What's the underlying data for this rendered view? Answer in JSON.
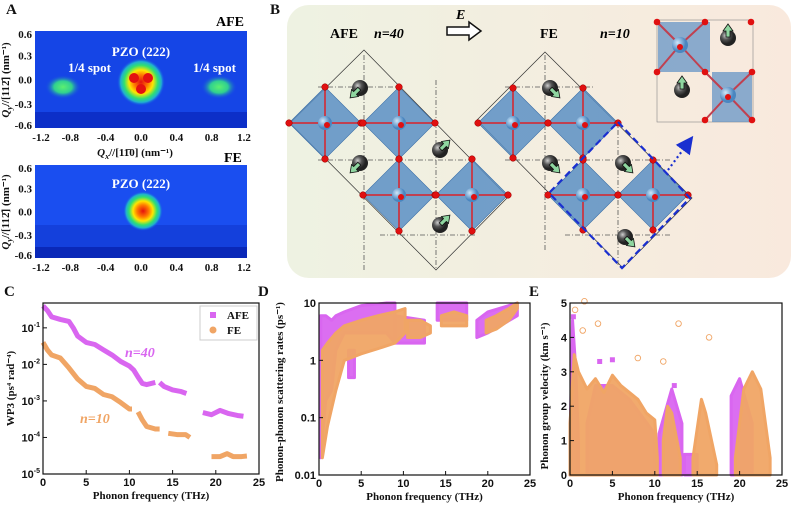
{
  "panel_labels": {
    "a": "A",
    "b": "B",
    "c": "C",
    "d": "D",
    "e": "E"
  },
  "colors": {
    "afe": "#d966f0",
    "fe": "#f0a565",
    "heat_bg": "#1545e6",
    "cell_bg_left": "#eef2e2",
    "cell_bg_right": "#f9e9dd",
    "octa": "#5b8fc4",
    "oxygen": "#e01010",
    "a_site": "#444444",
    "arrow": "#8fd6a0",
    "dash_box": "#1a2fd0"
  },
  "panel_a": {
    "top_state": "AFE",
    "bottom_state": "FE",
    "peak_label": "PZO (222)",
    "spot_label": "1/4 spot",
    "x_ticks": [
      "-1.2",
      "-0.8",
      "-0.4",
      "0.0",
      "0.4",
      "0.8",
      "1.2"
    ],
    "y_ticks": [
      "0.6",
      "0.3",
      "0.0",
      "-0.3",
      "-0.6"
    ],
    "xlabel": {
      "var": "Q",
      "sub": "x",
      "rest": "//[11̄0] (nm⁻¹)"
    },
    "ylabel": {
      "var": "Q",
      "sub": "y",
      "rest": "//[112̄] (nm⁻¹)"
    }
  },
  "panel_b": {
    "afe_label": "AFE",
    "afe_n": "n=40",
    "field_label": "E",
    "fe_label": "FE",
    "fe_n": "n=10"
  },
  "chart_data": [
    {
      "id": "C",
      "type": "line",
      "xlabel": "Phonon frequency (THz)",
      "ylabel": "WP3 (ps⁴ rad⁻⁴)",
      "xlim": [
        0,
        25
      ],
      "ylim_log10": [
        -5,
        -0.32
      ],
      "yscale": "log",
      "x_ticks": [
        "0",
        "5",
        "10",
        "15",
        "20",
        "25"
      ],
      "y_tick_exponents": [
        "-5",
        "-4",
        "-3",
        "-2",
        "-1"
      ],
      "legend": {
        "position": "top-right",
        "entries": [
          "AFE",
          "FE"
        ]
      },
      "annotations": [
        "n=40",
        "n=10"
      ],
      "series": [
        {
          "name": "AFE",
          "segments": [
            [
              [
                0,
                0.4
              ],
              [
                0.5,
                0.3
              ],
              [
                1,
                0.2
              ],
              [
                2,
                0.17
              ],
              [
                3,
                0.15
              ],
              [
                3.5,
                0.1
              ],
              [
                4,
                0.06
              ],
              [
                5,
                0.04
              ],
              [
                6,
                0.035
              ],
              [
                7,
                0.025
              ],
              [
                8,
                0.018
              ],
              [
                9,
                0.012
              ],
              [
                10,
                0.009
              ],
              [
                10.5,
                0.007
              ],
              [
                11,
                0.0045
              ],
              [
                11.5,
                0.003
              ],
              [
                12,
                0.0028
              ],
              [
                13,
                0.0032
              ]
            ],
            [
              [
                13.5,
                0.0032
              ],
              [
                14,
                0.0025
              ],
              [
                15,
                0.002
              ],
              [
                16,
                0.0018
              ],
              [
                16.6,
                0.0016
              ]
            ],
            [
              [
                18.5,
                0.00048
              ],
              [
                19.5,
                0.00042
              ],
              [
                20.5,
                0.00055
              ],
              [
                21.5,
                0.00045
              ],
              [
                22.5,
                0.0004
              ],
              [
                23.2,
                0.00038
              ]
            ]
          ]
        },
        {
          "name": "FE",
          "segments": [
            [
              [
                0,
                0.04
              ],
              [
                0.5,
                0.025
              ],
              [
                1,
                0.018
              ],
              [
                2,
                0.015
              ],
              [
                3,
                0.008
              ],
              [
                4,
                0.004
              ],
              [
                5,
                0.0025
              ],
              [
                6,
                0.0022
              ],
              [
                7,
                0.0015
              ],
              [
                8,
                0.0013
              ],
              [
                9,
                0.0009
              ],
              [
                10,
                0.0006
              ],
              [
                10.3,
                0.0006
              ]
            ],
            [
              [
                11,
                0.0005
              ],
              [
                11.5,
                0.0003
              ],
              [
                12,
                0.0002
              ],
              [
                13,
                0.00017
              ],
              [
                13.5,
                0.00017
              ]
            ],
            [
              [
                14.5,
                0.00013
              ],
              [
                15.5,
                0.00012
              ],
              [
                16.5,
                0.00012
              ],
              [
                17,
                0.0001
              ]
            ],
            [
              [
                19.5,
                3e-05
              ],
              [
                20.5,
                3e-05
              ],
              [
                21.3,
                3.6e-05
              ],
              [
                22,
                3e-05
              ],
              [
                23,
                3e-05
              ],
              [
                23.6,
                3.1e-05
              ]
            ]
          ]
        }
      ]
    },
    {
      "id": "D",
      "type": "scatter",
      "xlabel": "Phonon frequency (THz)",
      "ylabel": "Phonon-phonon scattering rates (ps⁻¹)",
      "xlim": [
        0,
        25
      ],
      "ylim": [
        0.01,
        10
      ],
      "yscale": "log",
      "x_ticks": [
        "0",
        "5",
        "10",
        "15",
        "20",
        "25"
      ],
      "y_ticks": [
        "0.01",
        "0.1",
        "1",
        "10"
      ],
      "series": [
        {
          "name": "AFE",
          "bands": [
            {
              "x": [
                0.2,
                0.8,
                1.5,
                2,
                3,
                5,
                8,
                9
              ],
              "lo": [
                0.02,
                0.2,
                0.3,
                1.5,
                3,
                3,
                3,
                2
              ],
              "hi": [
                6,
                6,
                5,
                6,
                7,
                9,
                10,
                10
              ]
            },
            {
              "x": [
                3.5,
                4.2
              ],
              "lo": [
                0.5,
                0.5
              ],
              "hi": [
                1.5,
                1.5
              ]
            },
            {
              "x": [
                9,
                12.5
              ],
              "lo": [
                2,
                2
              ],
              "hi": [
                6,
                5
              ]
            },
            {
              "x": [
                14,
                17.5
              ],
              "lo": [
                5,
                5
              ],
              "hi": [
                10,
                10
              ]
            },
            {
              "x": [
                18.7,
                20,
                23.5
              ],
              "lo": [
                2.5,
                3,
                6
              ],
              "hi": [
                5,
                7,
                10
              ]
            }
          ]
        },
        {
          "name": "FE",
          "bands": [
            {
              "x": [
                0.4,
                1,
                2,
                3,
                5,
                7,
                9,
                10.2
              ],
              "lo": [
                0.02,
                0.07,
                0.3,
                1,
                1.3,
                1.6,
                2,
                3
              ],
              "hi": [
                1.5,
                2,
                3,
                4,
                5,
                6,
                7,
                8
              ]
            },
            {
              "x": [
                10.5,
                12,
                13.2
              ],
              "lo": [
                2.5,
                2.5,
                3
              ],
              "hi": [
                5,
                5,
                4
              ]
            },
            {
              "x": [
                14.5,
                16,
                17.5
              ],
              "lo": [
                4,
                4,
                4
              ],
              "hi": [
                6,
                7,
                6
              ]
            },
            {
              "x": [
                19.8,
                21,
                22.5,
                23.5
              ],
              "lo": [
                3,
                3.5,
                5,
                8
              ],
              "hi": [
                5,
                6,
                8,
                10
              ]
            }
          ]
        }
      ]
    },
    {
      "id": "E",
      "type": "scatter",
      "xlabel": "Phonon frequency (THz)",
      "ylabel": "Phonon group velocity (km s⁻¹)",
      "xlim": [
        0,
        25
      ],
      "ylim": [
        0,
        5
      ],
      "x_ticks": [
        "0",
        "5",
        "10",
        "15",
        "20",
        "25"
      ],
      "y_ticks": [
        "0",
        "1",
        "2",
        "3",
        "4",
        "5"
      ],
      "series": [
        {
          "name": "AFE",
          "bands": [
            {
              "x": [
                0,
                0.3,
                0.7,
                1
              ],
              "lo": [
                0,
                0,
                0,
                0
              ],
              "hi": [
                1,
                4.5,
                3,
                1
              ]
            },
            {
              "x": [
                2,
                3,
                5,
                7,
                10
              ],
              "lo": [
                0,
                0,
                0,
                0,
                0
              ],
              "hi": [
                1.5,
                2.6,
                2.6,
                2.2,
                1.2
              ]
            },
            {
              "x": [
                10.5,
                12,
                13.2
              ],
              "lo": [
                0,
                0,
                0
              ],
              "hi": [
                1.2,
                2.5,
                1.5
              ]
            },
            {
              "x": [
                13.5,
                15
              ],
              "lo": [
                0,
                0
              ],
              "hi": [
                0.6,
                0.6
              ]
            },
            {
              "x": [
                19,
                20,
                21.5
              ],
              "lo": [
                0,
                0,
                0
              ],
              "hi": [
                2.3,
                2.8,
                1.5
              ]
            }
          ],
          "outliers": [
            [
              0.4,
              4.6
            ],
            [
              3.5,
              3.3
            ],
            [
              5,
              3.35
            ],
            [
              12.3,
              2.6
            ]
          ]
        },
        {
          "name": "FE",
          "bands": [
            {
              "x": [
                0,
                0.5,
                1,
                2,
                3,
                4,
                5,
                6,
                7,
                8,
                9,
                10,
                10.3
              ],
              "lo": [
                0,
                0,
                0,
                0,
                0,
                0,
                0,
                0,
                0,
                0,
                0,
                0,
                0
              ],
              "hi": [
                1.5,
                3.5,
                3,
                2.5,
                2.8,
                2.4,
                2.9,
                2.6,
                2.4,
                2.2,
                1.8,
                1.6,
                0.5
              ]
            },
            {
              "x": [
                11,
                11.5,
                12,
                13
              ],
              "lo": [
                0,
                0,
                0,
                0
              ],
              "hi": [
                1,
                2,
                1.8,
                0.5
              ]
            },
            {
              "x": [
                14.5,
                15.5,
                16,
                17.3
              ],
              "lo": [
                0,
                0,
                0,
                0
              ],
              "hi": [
                0.5,
                2.2,
                1.8,
                0.3
              ]
            },
            {
              "x": [
                19.5,
                20.5,
                21.5,
                22.5,
                23.6
              ],
              "lo": [
                0,
                0,
                0,
                0,
                0
              ],
              "hi": [
                0.5,
                2.5,
                3,
                2.5,
                0.5
              ]
            }
          ],
          "outliers": [
            [
              1.7,
              5.05
            ],
            [
              3.3,
              4.4
            ],
            [
              12.8,
              4.4
            ],
            [
              16.4,
              4
            ],
            [
              1.5,
              4.2
            ],
            [
              8,
              3.4
            ],
            [
              11,
              3.3
            ],
            [
              0.6,
              4.8
            ]
          ]
        }
      ]
    }
  ]
}
